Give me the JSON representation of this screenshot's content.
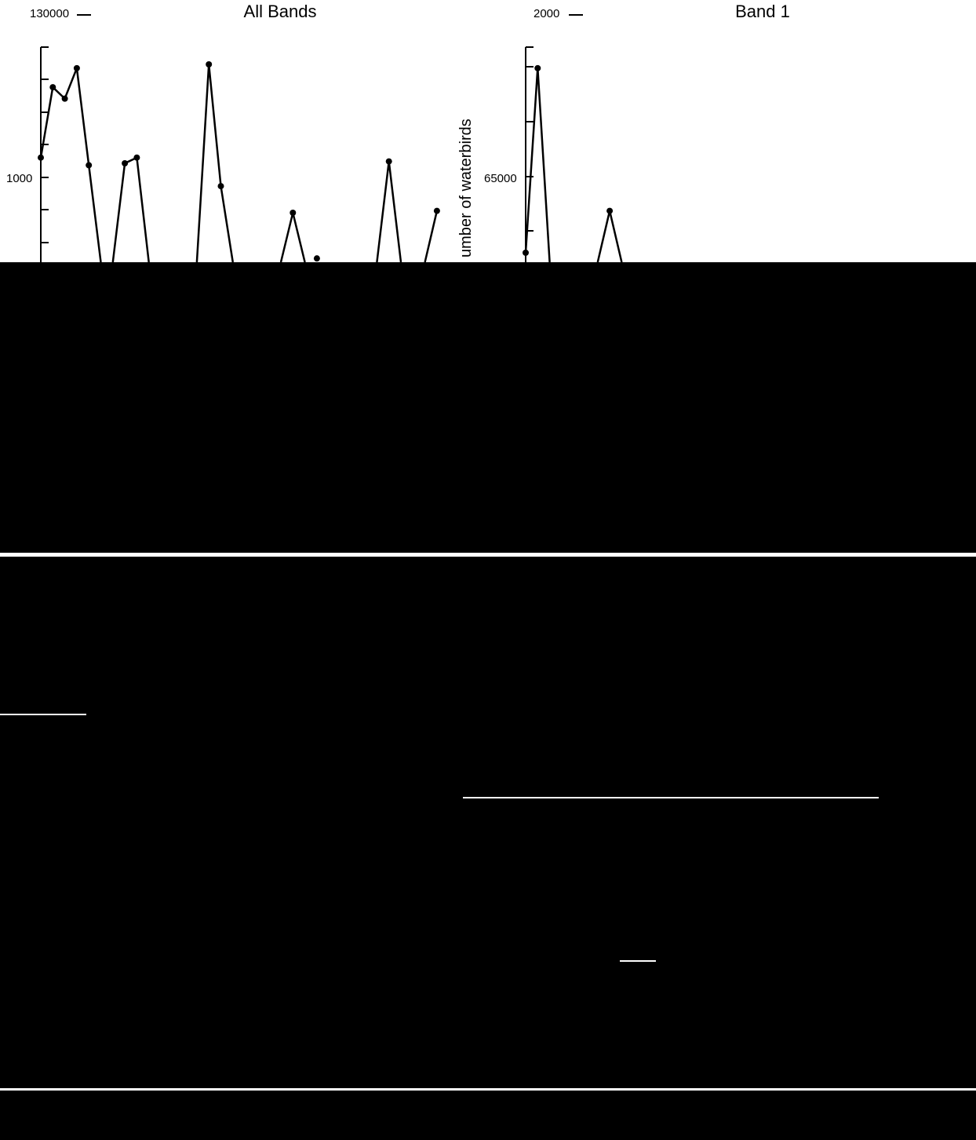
{
  "colors": {
    "background": "#000000",
    "panel": "#ffffff",
    "ink": "#000000",
    "divider": "#ffffff"
  },
  "ylabel_fragment": "umber of waterbirds",
  "chart_data": [
    {
      "type": "line",
      "title": "All Bands",
      "y_tick_labels": [
        "130000",
        "1000"
      ],
      "ylim": [
        0,
        130000
      ],
      "grid": false,
      "series": [
        {
          "segments": [
            [
              [
                0,
                55000
              ],
              [
                1,
                92000
              ],
              [
                2,
                86000
              ],
              [
                3,
                102000
              ],
              [
                4,
                51000
              ],
              [
                5,
                0
              ]
            ],
            [
              [
                6,
                0
              ],
              [
                7,
                52000
              ],
              [
                8,
                55000
              ],
              [
                9,
                0
              ]
            ],
            [
              [
                13,
                0
              ],
              [
                14,
                104000
              ],
              [
                15,
                40000
              ],
              [
                16,
                0
              ]
            ],
            [
              [
                20,
                0
              ],
              [
                21,
                26000
              ],
              [
                22,
                0
              ]
            ],
            [
              [
                23,
                2000
              ]
            ],
            [
              [
                28,
                0
              ],
              [
                29,
                53000
              ],
              [
                30,
                0
              ]
            ],
            [
              [
                32,
                0
              ],
              [
                33,
                27000
              ]
            ]
          ]
        }
      ]
    },
    {
      "type": "line",
      "title": "Band 1",
      "y_tick_labels": [
        "2000",
        "65000"
      ],
      "ylim": [
        0,
        130000
      ],
      "grid": false,
      "series": [
        {
          "segments": [
            [
              [
                0,
                5000
              ],
              [
                1,
                102000
              ],
              [
                2,
                0
              ]
            ],
            [
              [
                6,
                0
              ],
              [
                7,
                27000
              ],
              [
                8,
                0
              ]
            ]
          ]
        }
      ]
    }
  ]
}
